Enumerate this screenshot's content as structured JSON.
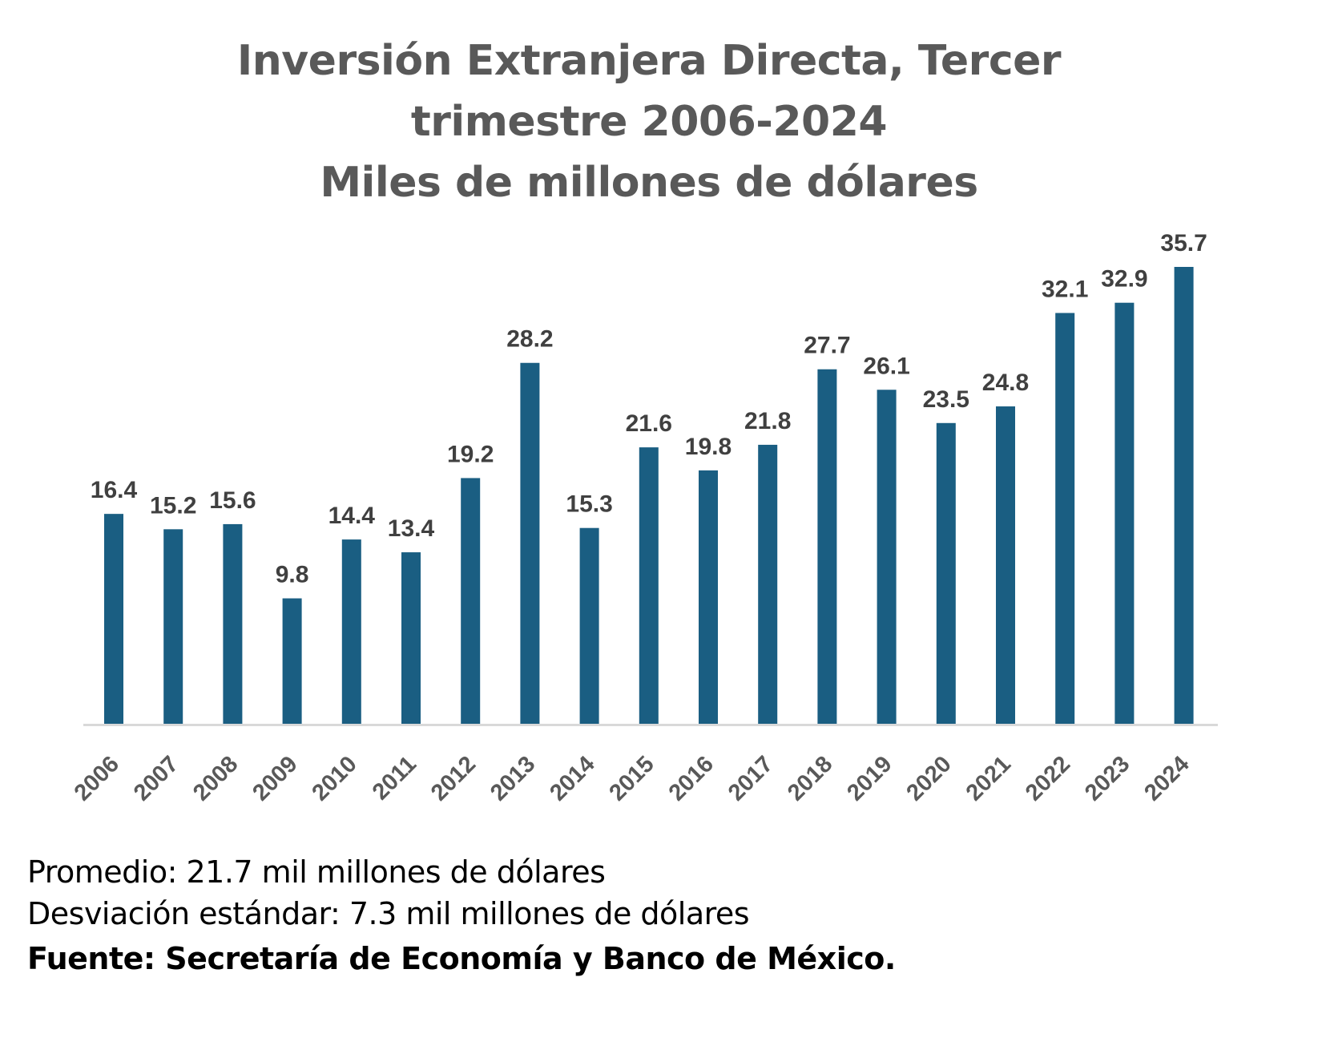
{
  "chart_data": {
    "type": "bar",
    "title_lines": [
      "Inversión Extranjera Directa, Tercer",
      "trimestre 2006-2024",
      "Miles de millones de dólares"
    ],
    "xlabel": "",
    "ylabel": "",
    "categories": [
      "2006",
      "2007",
      "2008",
      "2009",
      "2010",
      "2011",
      "2012",
      "2013",
      "2014",
      "2015",
      "2016",
      "2017",
      "2018",
      "2019",
      "2020",
      "2021",
      "2022",
      "2023",
      "2024"
    ],
    "values": [
      16.4,
      15.2,
      15.6,
      9.8,
      14.4,
      13.4,
      19.2,
      28.2,
      15.3,
      21.6,
      19.8,
      21.8,
      27.7,
      26.1,
      23.5,
      24.8,
      32.1,
      32.9,
      35.7
    ],
    "data_labels": [
      "16.4",
      "15.2",
      "15.6",
      "9.8",
      "14.4",
      "13.4",
      "19.2",
      "28.2",
      "15.3",
      "21.6",
      "19.8",
      "21.8",
      "27.7",
      "26.1",
      "23.5",
      "24.8",
      "32.1",
      "32.9",
      "35.7"
    ],
    "ylim": [
      0,
      36
    ],
    "y_axis_visible": false,
    "grid": false,
    "legend": "none",
    "bar_color": "#1a5e82",
    "label_color": "#404040",
    "axis_color": "#d9d9d9"
  },
  "notes": {
    "average": "Promedio: 21.7 mil millones de dólares",
    "std_dev": "Desviación estándar: 7.3 mil millones de dólares",
    "source": "Fuente: Secretaría de Economía y Banco de México."
  }
}
